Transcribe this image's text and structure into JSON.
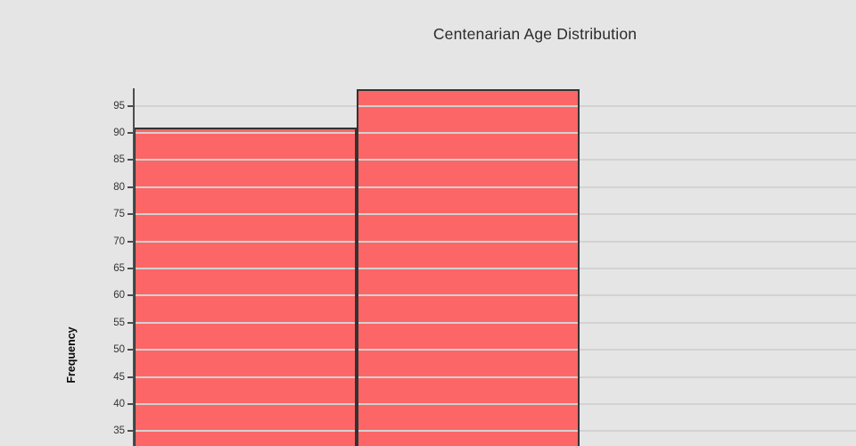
{
  "chart_data": {
    "type": "bar",
    "subtype": "histogram",
    "title": "Centenarian Age Distribution",
    "xlabel": "",
    "ylabel": "Frequency",
    "values": [
      91,
      98
    ],
    "y_ticks": [
      95,
      90,
      85,
      80,
      75,
      70,
      65,
      60,
      55,
      50,
      45,
      40,
      35
    ],
    "ylim_visible": [
      32,
      98.5
    ],
    "grid": "horizontal",
    "legend_position": "none",
    "colors": {
      "background": "#e5e5e5",
      "bar_fill": "#fd6666",
      "bar_border": "#333333",
      "gridline": "#d2d2d2",
      "axis": "#4d4d4d",
      "text": "#333333",
      "title_text": "#2b2b2b"
    }
  }
}
